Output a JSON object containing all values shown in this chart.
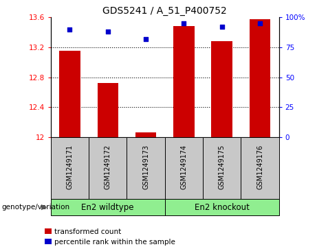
{
  "title": "GDS5241 / A_51_P400752",
  "samples": [
    "GSM1249171",
    "GSM1249172",
    "GSM1249173",
    "GSM1249174",
    "GSM1249175",
    "GSM1249176"
  ],
  "red_values": [
    13.15,
    12.72,
    12.06,
    13.48,
    13.28,
    13.58
  ],
  "blue_values": [
    90,
    88,
    82,
    95,
    92,
    95
  ],
  "ylim_left": [
    12,
    13.6
  ],
  "ylim_right": [
    0,
    100
  ],
  "yticks_left": [
    12,
    12.4,
    12.8,
    13.2,
    13.6
  ],
  "yticks_right": [
    0,
    25,
    50,
    75,
    100
  ],
  "ytick_labels_left": [
    "12",
    "12.4",
    "12.8",
    "13.2",
    "13.6"
  ],
  "ytick_labels_right": [
    "0",
    "25",
    "50",
    "75",
    "100%"
  ],
  "hlines": [
    12.4,
    12.8,
    13.2
  ],
  "group1_label": "En2 wildtype",
  "group2_label": "En2 knockout",
  "group1_indices": [
    0,
    1,
    2
  ],
  "group2_indices": [
    3,
    4,
    5
  ],
  "legend_red": "transformed count",
  "legend_blue": "percentile rank within the sample",
  "genotype_label": "genotype/variation",
  "bar_color": "#cc0000",
  "dot_color": "#0000cc",
  "group_color": "#90ee90",
  "label_box_color": "#c8c8c8",
  "title_fontsize": 10,
  "tick_fontsize": 7.5,
  "label_fontsize": 8.5
}
